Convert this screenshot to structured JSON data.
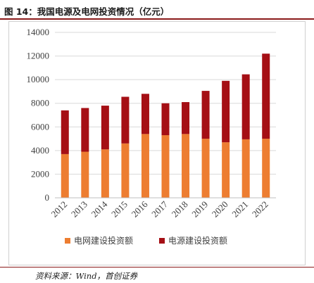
{
  "figure": {
    "title": "图 14：我国电源及电网投资情况（亿元）",
    "source": "资料来源：Wind，首创证券"
  },
  "chart_data": {
    "type": "bar",
    "stacked": true,
    "categories": [
      "2012",
      "2013",
      "2014",
      "2015",
      "2016",
      "2017",
      "2018",
      "2019",
      "2020",
      "2021",
      "2022"
    ],
    "series": [
      {
        "name": "电网建设投资额",
        "color": "#ed7d31",
        "values": [
          3700,
          3900,
          4100,
          4600,
          5400,
          5300,
          5400,
          5000,
          4700,
          4950,
          5000
        ]
      },
      {
        "name": "电源建设投资额",
        "color": "#a50f15",
        "values": [
          3700,
          3700,
          3700,
          3950,
          3400,
          2700,
          2700,
          4050,
          5200,
          5500,
          7200
        ]
      }
    ],
    "ylim": [
      0,
      14000
    ],
    "yticks": [
      "0",
      "2000",
      "4000",
      "6000",
      "8000",
      "10000",
      "12000",
      "14000"
    ],
    "grid": true,
    "legend": "bottom"
  }
}
